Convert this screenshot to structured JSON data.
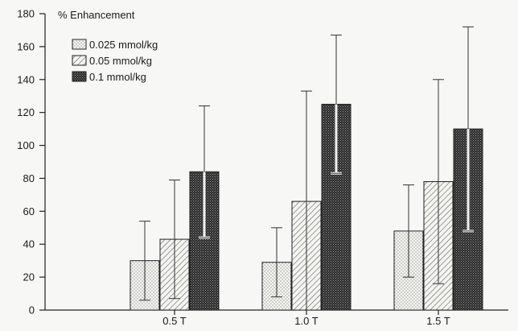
{
  "chart_data": {
    "type": "bar",
    "title": "",
    "xlabel": "",
    "ylabel": "% Enhancement",
    "ylim": [
      0,
      180
    ],
    "yticks": [
      0,
      20,
      40,
      60,
      80,
      100,
      120,
      140,
      160,
      180
    ],
    "categories": [
      "0.5 T",
      "1.0 T",
      "1.5 T"
    ],
    "legend_position": "top-left",
    "grid": false,
    "error_bars": "standard deviation (upper and lower whiskers)",
    "series": [
      {
        "name": "0.025 mmol/kg",
        "pattern": "dotted",
        "values": [
          30,
          29,
          48
        ],
        "err_low": [
          6,
          8,
          20
        ],
        "err_high": [
          54,
          50,
          76
        ]
      },
      {
        "name": "0.05 mmol/kg",
        "pattern": "diagonal-hatch",
        "values": [
          43,
          66,
          78
        ],
        "err_low": [
          7,
          0,
          16
        ],
        "err_high": [
          79,
          133,
          140
        ]
      },
      {
        "name": "0.1 mmol/kg",
        "pattern": "dense-crosshatch",
        "values": [
          84,
          125,
          110
        ],
        "err_low": [
          44,
          83,
          48
        ],
        "err_high": [
          124,
          167,
          172
        ]
      }
    ]
  }
}
